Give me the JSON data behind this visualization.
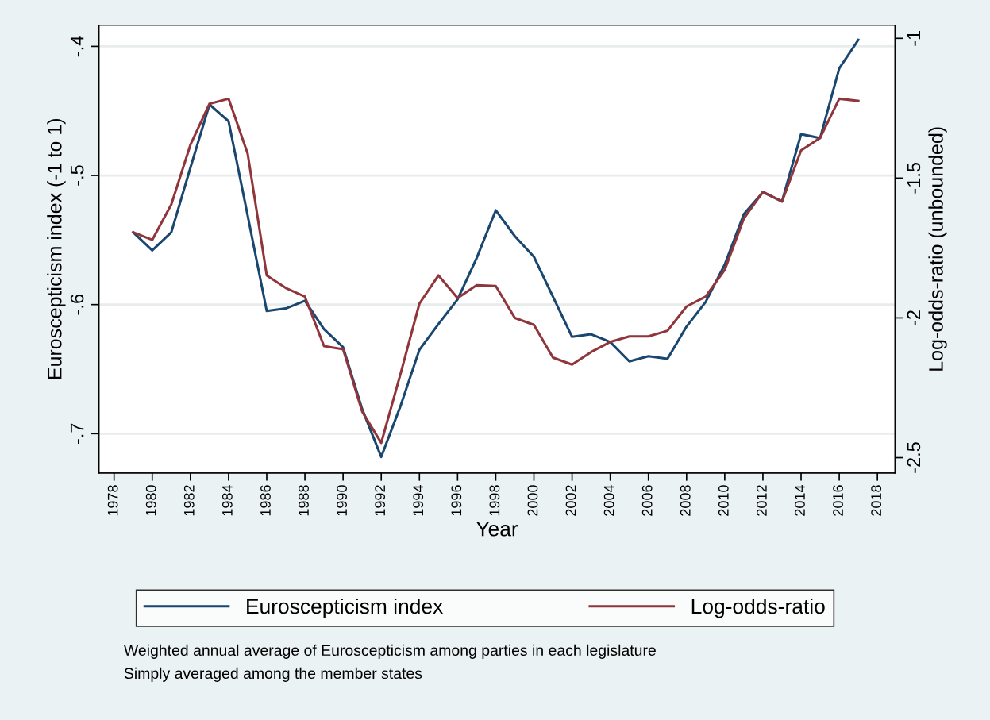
{
  "chart_data": {
    "type": "line",
    "xlabel": "Year",
    "ylabel": "Euroscepticism index (-1 to 1)",
    "y2label": "Log-odds-ratio (unbounded)",
    "x": [
      1979,
      1980,
      1981,
      1982,
      1983,
      1984,
      1985,
      1986,
      1987,
      1988,
      1989,
      1990,
      1991,
      1992,
      1993,
      1994,
      1995,
      1996,
      1997,
      1998,
      1999,
      2000,
      2001,
      2002,
      2003,
      2004,
      2005,
      2006,
      2007,
      2008,
      2009,
      2010,
      2011,
      2012,
      2013,
      2014,
      2015,
      2016,
      2017
    ],
    "series": [
      {
        "name": "Euroscepticism index",
        "color": "#1a476f",
        "values": [
          -0.544,
          -0.558,
          -0.544,
          -0.494,
          -0.445,
          -0.458,
          -0.531,
          -0.605,
          -0.603,
          -0.597,
          -0.619,
          -0.633,
          -0.681,
          -0.718,
          -0.679,
          -0.635,
          -0.615,
          -0.596,
          -0.564,
          -0.527,
          -0.547,
          -0.563,
          -0.594,
          -0.625,
          -0.623,
          -0.629,
          -0.644,
          -0.64,
          -0.642,
          -0.617,
          -0.598,
          -0.569,
          -0.53,
          -0.513,
          -0.52,
          -0.468,
          -0.471,
          -0.417,
          -0.395
        ]
      },
      {
        "name": "Log-odds-ratio",
        "color": "#90353b",
        "axis": "y2",
        "values": [
          -1.694,
          -1.721,
          -1.594,
          -1.381,
          -1.234,
          -1.216,
          -1.412,
          -1.848,
          -1.893,
          -1.924,
          -2.101,
          -2.112,
          -2.335,
          -2.447,
          -2.203,
          -1.949,
          -1.848,
          -1.929,
          -1.883,
          -1.886,
          -2.0,
          -2.025,
          -2.142,
          -2.167,
          -2.122,
          -2.086,
          -2.066,
          -2.066,
          -2.046,
          -1.959,
          -1.924,
          -1.828,
          -1.645,
          -1.549,
          -1.584,
          -1.401,
          -1.356,
          -1.216,
          -1.224
        ]
      }
    ],
    "xlim": [
      1977.21,
      2018.92
    ],
    "xticks": [
      1978,
      1980,
      1982,
      1984,
      1986,
      1988,
      1990,
      1992,
      1994,
      1996,
      1998,
      2000,
      2002,
      2004,
      2006,
      2008,
      2010,
      2012,
      2014,
      2016,
      2018
    ],
    "ylim": [
      -0.7305,
      -0.3836
    ],
    "yticks": [
      {
        "value": -0.7,
        "label": "-.7"
      },
      {
        "value": -0.6,
        "label": "-.6"
      },
      {
        "value": -0.5,
        "label": "-.5"
      },
      {
        "value": -0.4,
        "label": "-.4"
      }
    ],
    "y2lim": [
      -2.555,
      -0.953
    ],
    "y2ticks": [
      -2.5,
      -2,
      -1.5,
      -1
    ],
    "grid": "y",
    "legend": "bottom",
    "line_style": "solid",
    "annotations": [
      "Weighted annual average of Euroscepticism among parties in each legislature",
      "Simply averaged among the member states"
    ]
  }
}
